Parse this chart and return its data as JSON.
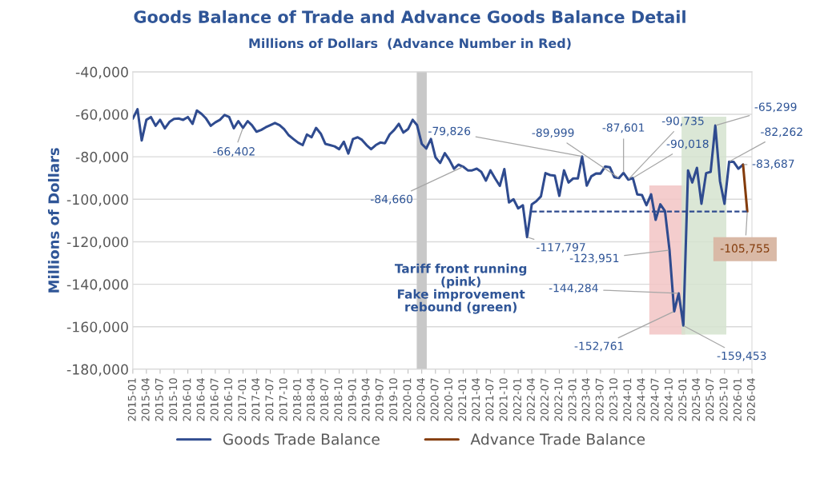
{
  "chart_data": {
    "type": "line",
    "title": "Goods Balance of Trade and Advance Goods Balance Detail",
    "subtitle": "Millions of Dollars  (Advance Number in Red)",
    "ylabel": "Millions of Dollars",
    "x": [
      "2015-01",
      "2015-02",
      "2015-03",
      "2015-04",
      "2015-05",
      "2015-06",
      "2015-07",
      "2015-08",
      "2015-09",
      "2015-10",
      "2015-11",
      "2015-12",
      "2016-01",
      "2016-02",
      "2016-03",
      "2016-04",
      "2016-05",
      "2016-06",
      "2016-07",
      "2016-08",
      "2016-09",
      "2016-10",
      "2016-11",
      "2016-12",
      "2017-01",
      "2017-02",
      "2017-03",
      "2017-04",
      "2017-05",
      "2017-06",
      "2017-07",
      "2017-08",
      "2017-09",
      "2017-10",
      "2017-11",
      "2017-12",
      "2018-01",
      "2018-02",
      "2018-03",
      "2018-04",
      "2018-05",
      "2018-06",
      "2018-07",
      "2018-08",
      "2018-09",
      "2018-10",
      "2018-11",
      "2018-12",
      "2019-01",
      "2019-02",
      "2019-03",
      "2019-04",
      "2019-05",
      "2019-06",
      "2019-07",
      "2019-08",
      "2019-09",
      "2019-10",
      "2019-11",
      "2019-12",
      "2020-01",
      "2020-02",
      "2020-03",
      "2020-04",
      "2020-05",
      "2020-06",
      "2020-07",
      "2020-08",
      "2020-09",
      "2020-10",
      "2020-11",
      "2020-12",
      "2021-01",
      "2021-02",
      "2021-03",
      "2021-04",
      "2021-05",
      "2021-06",
      "2021-07",
      "2021-08",
      "2021-09",
      "2021-10",
      "2021-11",
      "2021-12",
      "2022-01",
      "2022-02",
      "2022-03",
      "2022-04",
      "2022-05",
      "2022-06",
      "2022-07",
      "2022-08",
      "2022-09",
      "2022-10",
      "2022-11",
      "2022-12",
      "2023-01",
      "2023-02",
      "2023-03",
      "2023-04",
      "2023-05",
      "2023-06",
      "2023-07",
      "2023-08",
      "2023-09",
      "2023-10",
      "2023-11",
      "2023-12",
      "2024-01",
      "2024-02",
      "2024-03",
      "2024-04",
      "2024-05",
      "2024-06",
      "2024-07",
      "2024-08",
      "2024-09",
      "2024-10",
      "2024-11",
      "2024-12",
      "2025-01",
      "2025-02",
      "2025-03",
      "2025-04",
      "2025-05",
      "2025-06",
      "2025-07",
      "2025-08",
      "2025-09",
      "2025-10",
      "2025-11",
      "2025-12",
      "2026-01",
      "2026-02"
    ],
    "series": [
      {
        "name": "Goods Trade Balance",
        "color": "#2f4b8f",
        "values": [
          -62000,
          -57600,
          -72300,
          -62600,
          -61300,
          -65400,
          -62600,
          -66600,
          -63600,
          -62200,
          -62000,
          -62600,
          -61300,
          -64500,
          -58200,
          -59800,
          -62000,
          -65400,
          -63800,
          -62600,
          -60300,
          -61300,
          -66600,
          -63200,
          -66402,
          -63200,
          -65100,
          -68200,
          -67400,
          -66100,
          -65100,
          -64100,
          -65100,
          -67000,
          -69900,
          -71600,
          -73300,
          -74500,
          -69500,
          -70800,
          -66400,
          -69100,
          -73900,
          -74500,
          -75100,
          -76400,
          -72900,
          -78500,
          -71600,
          -70800,
          -72000,
          -74500,
          -76400,
          -74500,
          -73300,
          -73600,
          -69500,
          -67400,
          -64500,
          -68600,
          -67000,
          -62600,
          -65100,
          -73900,
          -76100,
          -71600,
          -80200,
          -82900,
          -78300,
          -81400,
          -85600,
          -83700,
          -84660,
          -86400,
          -86400,
          -85600,
          -87100,
          -91200,
          -86400,
          -90200,
          -93700,
          -85800,
          -101500,
          -100000,
          -104300,
          -102800,
          -117797,
          -102400,
          -100900,
          -98600,
          -87700,
          -88600,
          -88900,
          -98400,
          -86400,
          -92100,
          -90200,
          -90200,
          -79826,
          -93600,
          -89200,
          -87900,
          -87900,
          -84600,
          -84900,
          -89600,
          -89999,
          -87601,
          -90735,
          -90018,
          -97700,
          -98000,
          -102800,
          -97700,
          -109700,
          -102400,
          -105600,
          -123951,
          -152761,
          -144284,
          -159453,
          -86400,
          -92100,
          -85200,
          -102100,
          -87700,
          -87100,
          -65299,
          -91500,
          -102100,
          -82262,
          -82400,
          -85600,
          -83687
        ]
      },
      {
        "name": "Advance Trade Balance",
        "color": "#843c0c",
        "x": [
          "2026-02",
          "2026-03"
        ],
        "values": [
          -83687,
          -105755
        ]
      },
      {
        "color": "#2f4b8f",
        "line_style": "dashed",
        "x": [
          "2022-04",
          "2026-03"
        ],
        "values": [
          -105755,
          -105755
        ]
      }
    ],
    "ylim": [
      -180000,
      -40000
    ],
    "yticks": [
      {
        "value": -180000,
        "label": "-180,000"
      },
      {
        "value": -160000,
        "label": "-160,000"
      },
      {
        "value": -140000,
        "label": "-140,000"
      },
      {
        "value": -120000,
        "label": "-120,000"
      },
      {
        "value": -100000,
        "label": "-100,000"
      },
      {
        "value": -80000,
        "label": "-80,000"
      },
      {
        "value": -60000,
        "label": "-60,000"
      },
      {
        "value": -40000,
        "label": "-40,000"
      }
    ],
    "xlim": [
      "2015-01",
      "2026-04"
    ],
    "xticks": [
      "2015-01",
      "2015-04",
      "2015-07",
      "2015-10",
      "2016-01",
      "2016-04",
      "2016-07",
      "2016-10",
      "2017-01",
      "2017-04",
      "2017-07",
      "2017-10",
      "2018-01",
      "2018-04",
      "2018-07",
      "2018-10",
      "2019-01",
      "2019-04",
      "2019-07",
      "2019-10",
      "2020-01",
      "2020-04",
      "2020-07",
      "2020-10",
      "2021-01",
      "2021-04",
      "2021-07",
      "2021-10",
      "2022-01",
      "2022-04",
      "2022-07",
      "2022-10",
      "2023-01",
      "2023-04",
      "2023-07",
      "2023-10",
      "2024-01",
      "2024-04",
      "2024-07",
      "2024-10",
      "2025-01",
      "2025-04",
      "2025-07",
      "2025-10",
      "2026-01",
      "2026-04"
    ],
    "ref_lines": [
      {
        "axis": "x",
        "value": "2020-04",
        "color": "#c8c8c8"
      }
    ],
    "bands": [
      {
        "axis": "x",
        "from": "2024-06",
        "to": "2025-01",
        "color": "#f2c4c4"
      },
      {
        "axis": "x",
        "from": "2025-01",
        "to": "2025-10",
        "color": "#d5e3cf"
      }
    ],
    "annotations": [
      {
        "text": "-66,402",
        "x": "2017-01",
        "y": -66402
      },
      {
        "text": "-84,660",
        "x": "2021-01",
        "y": -84660
      },
      {
        "text": "-117,797",
        "x": "2022-03",
        "y": -117797
      },
      {
        "text": "-79,826",
        "x": "2023-03",
        "y": -79826
      },
      {
        "text": "-89,999",
        "x": "2023-11",
        "y": -89999
      },
      {
        "text": "-87,601",
        "x": "2023-12",
        "y": -87601
      },
      {
        "text": "-90,735",
        "x": "2024-01",
        "y": -90735
      },
      {
        "text": "-90,018",
        "x": "2024-02",
        "y": -90018
      },
      {
        "text": "-123,951",
        "x": "2024-10",
        "y": -123951
      },
      {
        "text": "-152,761",
        "x": "2024-11",
        "y": -152761
      },
      {
        "text": "-144,284",
        "x": "2024-12",
        "y": -144284
      },
      {
        "text": "-159,453",
        "x": "2025-01",
        "y": -159453
      },
      {
        "text": "-65,299",
        "x": "2025-08",
        "y": -65299
      },
      {
        "text": "-82,262",
        "x": "2025-11",
        "y": -82262
      },
      {
        "text": "-83,687",
        "x": "2026-02",
        "y": -83687
      },
      {
        "text": "-105,755",
        "x": "2026-03",
        "y": -105755
      },
      "Tariff front running\n(pink)\nFake improvement\nrebound (green)"
    ],
    "grid": "y",
    "legend": "bottom"
  }
}
